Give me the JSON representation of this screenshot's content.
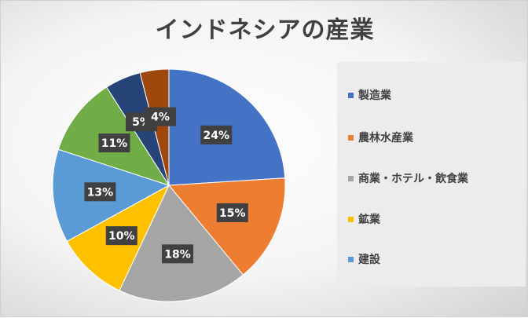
{
  "chart_data": {
    "type": "pie",
    "title": "インドネシアの産業",
    "categories": [
      "製造業",
      "農林水産業",
      "商業・ホテル・飲食業",
      "鉱業",
      "建設",
      "",
      "",
      ""
    ],
    "values": [
      24,
      15,
      18,
      10,
      13,
      11,
      5,
      4
    ],
    "data_labels": [
      "24%",
      "15%",
      "18%",
      "10%",
      "13%",
      "11%",
      "5%",
      "4%"
    ],
    "colors": [
      "#4472C4",
      "#ED7D31",
      "#A5A5A5",
      "#FFC000",
      "#5B9BD5",
      "#70AD47",
      "#264478",
      "#9E480E"
    ],
    "legend": {
      "placement": "right",
      "entries": [
        "製造業",
        "農林水産業",
        "商業・ホテル・飲食業",
        "鉱業",
        "建設"
      ]
    },
    "start_angle": "12 o'clock",
    "direction": "clockwise"
  }
}
